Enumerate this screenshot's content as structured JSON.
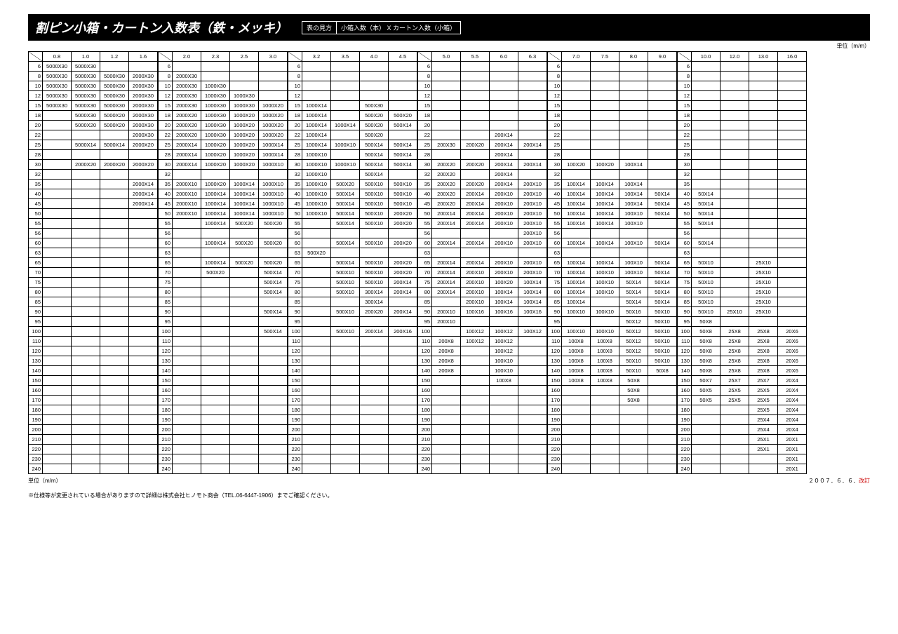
{
  "title": "割ピン小箱・カートン入数表（鉄・メッキ）",
  "legend_label": "表の見方",
  "legend_value": "小箱入数（本） X カートン入数（小箱）",
  "unit_label": "単位（m/m）",
  "footer_unit": "単位（m/m）",
  "footer_date_prefix": "２００７．６．６．",
  "footer_date_rev": "改訂",
  "disclaimer": "※仕様等が変更されている場合がありますので詳細は株式会社ヒノモト商会（TEL.06-6447-1906）までご確認ください。",
  "colgroups": [
    [
      "0.8",
      "1.0",
      "1.2",
      "1.6"
    ],
    [
      "2.0",
      "2.3",
      "2.5",
      "3.0"
    ],
    [
      "3.2",
      "3.5",
      "4.0",
      "4.5"
    ],
    [
      "5.0",
      "5.5",
      "6.0",
      "6.3"
    ],
    [
      "7.0",
      "7.5",
      "8.0",
      "9.0"
    ],
    [
      "10.0",
      "12.0",
      "13.0",
      "16.0"
    ]
  ],
  "rowheads": [
    "6",
    "8",
    "10",
    "12",
    "15",
    "18",
    "20",
    "22",
    "25",
    "28",
    "30",
    "32",
    "35",
    "40",
    "45",
    "50",
    "55",
    "56",
    "60",
    "63",
    "65",
    "70",
    "75",
    "80",
    "85",
    "90",
    "95",
    "100",
    "110",
    "120",
    "130",
    "140",
    "150",
    "160",
    "170",
    "180",
    "190",
    "200",
    "210",
    "220",
    "230",
    "240"
  ],
  "blocks": [
    [
      [
        "5000X30",
        "5000X30",
        "",
        ""
      ],
      [
        "5000X30",
        "5000X30",
        "5000X30",
        "2000X30"
      ],
      [
        "5000X30",
        "5000X30",
        "5000X30",
        "2000X30"
      ],
      [
        "5000X30",
        "5000X30",
        "5000X30",
        "2000X30"
      ],
      [
        "5000X30",
        "5000X30",
        "5000X30",
        "2000X30"
      ],
      [
        "",
        "5000X30",
        "5000X20",
        "2000X30"
      ],
      [
        "",
        "5000X20",
        "5000X20",
        "2000X30"
      ],
      [
        "",
        "",
        "",
        "2000X30"
      ],
      [
        "",
        "5000X14",
        "5000X14",
        "2000X20"
      ],
      [
        "",
        "",
        "",
        ""
      ],
      [
        "",
        "2000X20",
        "2000X20",
        "2000X20"
      ],
      [
        "",
        "",
        "",
        ""
      ],
      [
        "",
        "",
        "",
        "2000X14"
      ],
      [
        "",
        "",
        "",
        "2000X14"
      ],
      [
        "",
        "",
        "",
        "2000X14"
      ],
      [
        "",
        "",
        "",
        ""
      ],
      [
        "",
        "",
        "",
        ""
      ],
      [
        "",
        "",
        "",
        ""
      ],
      [
        "",
        "",
        "",
        ""
      ],
      [
        "",
        "",
        "",
        ""
      ],
      [
        "",
        "",
        "",
        ""
      ],
      [
        "",
        "",
        "",
        ""
      ],
      [
        "",
        "",
        "",
        ""
      ],
      [
        "",
        "",
        "",
        ""
      ],
      [
        "",
        "",
        "",
        ""
      ],
      [
        "",
        "",
        "",
        ""
      ],
      [
        "",
        "",
        "",
        ""
      ],
      [
        "",
        "",
        "",
        ""
      ],
      [
        "",
        "",
        "",
        ""
      ],
      [
        "",
        "",
        "",
        ""
      ],
      [
        "",
        "",
        "",
        ""
      ],
      [
        "",
        "",
        "",
        ""
      ],
      [
        "",
        "",
        "",
        ""
      ],
      [
        "",
        "",
        "",
        ""
      ],
      [
        "",
        "",
        "",
        ""
      ],
      [
        "",
        "",
        "",
        ""
      ],
      [
        "",
        "",
        "",
        ""
      ],
      [
        "",
        "",
        "",
        ""
      ],
      [
        "",
        "",
        "",
        ""
      ],
      [
        "",
        "",
        "",
        ""
      ],
      [
        "",
        "",
        "",
        ""
      ],
      [
        "",
        "",
        "",
        ""
      ]
    ],
    [
      [
        "",
        "",
        "",
        ""
      ],
      [
        "2000X30",
        "",
        "",
        ""
      ],
      [
        "2000X30",
        "1000X30",
        "",
        ""
      ],
      [
        "2000X30",
        "1000X30",
        "1000X30",
        ""
      ],
      [
        "2000X30",
        "1000X30",
        "1000X30",
        "1000X20"
      ],
      [
        "2000X20",
        "1000X30",
        "1000X20",
        "1000X20"
      ],
      [
        "2000X20",
        "1000X30",
        "1000X20",
        "1000X20"
      ],
      [
        "2000X20",
        "1000X30",
        "1000X20",
        "1000X20"
      ],
      [
        "2000X14",
        "1000X20",
        "1000X20",
        "1000X14"
      ],
      [
        "2000X14",
        "1000X20",
        "1000X20",
        "1000X14"
      ],
      [
        "2000X14",
        "1000X20",
        "1000X20",
        "1000X10"
      ],
      [
        "",
        "",
        "",
        ""
      ],
      [
        "2000X10",
        "1000X20",
        "1000X14",
        "1000X10"
      ],
      [
        "2000X10",
        "1000X14",
        "1000X14",
        "1000X10"
      ],
      [
        "2000X10",
        "1000X14",
        "1000X14",
        "1000X10"
      ],
      [
        "2000X10",
        "1000X14",
        "1000X14",
        "1000X10"
      ],
      [
        "",
        "1000X14",
        "500X20",
        "500X20"
      ],
      [
        "",
        "",
        "",
        ""
      ],
      [
        "",
        "1000X14",
        "500X20",
        "500X20"
      ],
      [
        "",
        "",
        "",
        ""
      ],
      [
        "",
        "1000X14",
        "500X20",
        "500X20"
      ],
      [
        "",
        "500X20",
        "",
        "500X14"
      ],
      [
        "",
        "",
        "",
        "500X14"
      ],
      [
        "",
        "",
        "",
        "500X14"
      ],
      [
        "",
        "",
        "",
        ""
      ],
      [
        "",
        "",
        "",
        "500X14"
      ],
      [
        "",
        "",
        "",
        ""
      ],
      [
        "",
        "",
        "",
        "500X14"
      ],
      [
        "",
        "",
        "",
        ""
      ],
      [
        "",
        "",
        "",
        ""
      ],
      [
        "",
        "",
        "",
        ""
      ],
      [
        "",
        "",
        "",
        ""
      ],
      [
        "",
        "",
        "",
        ""
      ],
      [
        "",
        "",
        "",
        ""
      ],
      [
        "",
        "",
        "",
        ""
      ],
      [
        "",
        "",
        "",
        ""
      ],
      [
        "",
        "",
        "",
        ""
      ],
      [
        "",
        "",
        "",
        ""
      ],
      [
        "",
        "",
        "",
        ""
      ],
      [
        "",
        "",
        "",
        ""
      ],
      [
        "",
        "",
        "",
        ""
      ],
      [
        "",
        "",
        "",
        ""
      ]
    ],
    [
      [
        "",
        "",
        "",
        ""
      ],
      [
        "",
        "",
        "",
        ""
      ],
      [
        "",
        "",
        "",
        ""
      ],
      [
        "",
        "",
        "",
        ""
      ],
      [
        "1000X14",
        "",
        "500X30",
        ""
      ],
      [
        "1000X14",
        "",
        "500X20",
        "500X20"
      ],
      [
        "1000X14",
        "1000X14",
        "500X20",
        "500X14"
      ],
      [
        "1000X14",
        "",
        "500X20",
        ""
      ],
      [
        "1000X14",
        "1000X10",
        "500X14",
        "500X14"
      ],
      [
        "1000X10",
        "",
        "500X14",
        "500X14"
      ],
      [
        "1000X10",
        "1000X10",
        "500X14",
        "500X14"
      ],
      [
        "1000X10",
        "",
        "500X14",
        ""
      ],
      [
        "1000X10",
        "500X20",
        "500X10",
        "500X10"
      ],
      [
        "1000X10",
        "500X14",
        "500X10",
        "500X10"
      ],
      [
        "1000X10",
        "500X14",
        "500X10",
        "500X10"
      ],
      [
        "1000X10",
        "500X14",
        "500X10",
        "200X20"
      ],
      [
        "",
        "500X14",
        "500X10",
        "200X20"
      ],
      [
        "",
        "",
        "",
        ""
      ],
      [
        "",
        "500X14",
        "500X10",
        "200X20"
      ],
      [
        "500X20",
        "",
        "",
        ""
      ],
      [
        "",
        "500X14",
        "500X10",
        "200X20"
      ],
      [
        "",
        "500X10",
        "500X10",
        "200X20"
      ],
      [
        "",
        "500X10",
        "500X10",
        "200X14"
      ],
      [
        "",
        "500X10",
        "300X14",
        "200X14"
      ],
      [
        "",
        "",
        "300X14",
        ""
      ],
      [
        "",
        "500X10",
        "200X20",
        "200X14"
      ],
      [
        "",
        "",
        "",
        ""
      ],
      [
        "",
        "500X10",
        "200X14",
        "200X16"
      ],
      [
        "",
        "",
        "",
        ""
      ],
      [
        "",
        "",
        "",
        ""
      ],
      [
        "",
        "",
        "",
        ""
      ],
      [
        "",
        "",
        "",
        ""
      ],
      [
        "",
        "",
        "",
        ""
      ],
      [
        "",
        "",
        "",
        ""
      ],
      [
        "",
        "",
        "",
        ""
      ],
      [
        "",
        "",
        "",
        ""
      ],
      [
        "",
        "",
        "",
        ""
      ],
      [
        "",
        "",
        "",
        ""
      ],
      [
        "",
        "",
        "",
        ""
      ],
      [
        "",
        "",
        "",
        ""
      ],
      [
        "",
        "",
        "",
        ""
      ],
      [
        "",
        "",
        "",
        ""
      ]
    ],
    [
      [
        "",
        "",
        "",
        ""
      ],
      [
        "",
        "",
        "",
        ""
      ],
      [
        "",
        "",
        "",
        ""
      ],
      [
        "",
        "",
        "",
        ""
      ],
      [
        "",
        "",
        "",
        ""
      ],
      [
        "",
        "",
        "",
        ""
      ],
      [
        "",
        "",
        "",
        ""
      ],
      [
        "",
        "",
        "200X14",
        ""
      ],
      [
        "200X30",
        "200X20",
        "200X14",
        "200X14"
      ],
      [
        "",
        "",
        "200X14",
        ""
      ],
      [
        "200X20",
        "200X20",
        "200X14",
        "200X14"
      ],
      [
        "200X20",
        "",
        "200X14",
        ""
      ],
      [
        "200X20",
        "200X20",
        "200X14",
        "200X10"
      ],
      [
        "200X20",
        "200X14",
        "200X10",
        "200X10"
      ],
      [
        "200X20",
        "200X14",
        "200X10",
        "200X10"
      ],
      [
        "200X14",
        "200X14",
        "200X10",
        "200X10"
      ],
      [
        "200X14",
        "200X14",
        "200X10",
        "200X10"
      ],
      [
        "",
        "",
        "",
        "200X10"
      ],
      [
        "200X14",
        "200X14",
        "200X10",
        "200X10"
      ],
      [
        "",
        "",
        "",
        ""
      ],
      [
        "200X14",
        "200X14",
        "200X10",
        "200X10"
      ],
      [
        "200X14",
        "200X10",
        "200X10",
        "200X10"
      ],
      [
        "200X14",
        "200X10",
        "100X20",
        "100X14"
      ],
      [
        "200X14",
        "200X10",
        "100X14",
        "100X14"
      ],
      [
        "",
        "200X10",
        "100X14",
        "100X14"
      ],
      [
        "200X10",
        "100X16",
        "100X16",
        "100X16"
      ],
      [
        "200X10",
        "",
        "",
        ""
      ],
      [
        "",
        "100X12",
        "100X12",
        "100X12"
      ],
      [
        "200X8",
        "100X12",
        "100X12",
        ""
      ],
      [
        "200X8",
        "",
        "100X12",
        ""
      ],
      [
        "200X8",
        "",
        "100X10",
        ""
      ],
      [
        "200X8",
        "",
        "100X10",
        ""
      ],
      [
        "",
        "",
        "100X8",
        ""
      ],
      [
        "",
        "",
        "",
        ""
      ],
      [
        "",
        "",
        "",
        ""
      ],
      [
        "",
        "",
        "",
        ""
      ],
      [
        "",
        "",
        "",
        ""
      ],
      [
        "",
        "",
        "",
        ""
      ],
      [
        "",
        "",
        "",
        ""
      ],
      [
        "",
        "",
        "",
        ""
      ],
      [
        "",
        "",
        "",
        ""
      ],
      [
        "",
        "",
        "",
        ""
      ]
    ],
    [
      [
        "",
        "",
        "",
        ""
      ],
      [
        "",
        "",
        "",
        ""
      ],
      [
        "",
        "",
        "",
        ""
      ],
      [
        "",
        "",
        "",
        ""
      ],
      [
        "",
        "",
        "",
        ""
      ],
      [
        "",
        "",
        "",
        ""
      ],
      [
        "",
        "",
        "",
        ""
      ],
      [
        "",
        "",
        "",
        ""
      ],
      [
        "",
        "",
        "",
        ""
      ],
      [
        "",
        "",
        "",
        ""
      ],
      [
        "100X20",
        "100X20",
        "100X14",
        ""
      ],
      [
        "",
        "",
        "",
        ""
      ],
      [
        "100X14",
        "100X14",
        "100X14",
        ""
      ],
      [
        "100X14",
        "100X14",
        "100X14",
        "50X14"
      ],
      [
        "100X14",
        "100X14",
        "100X14",
        "50X14"
      ],
      [
        "100X14",
        "100X14",
        "100X10",
        "50X14"
      ],
      [
        "100X14",
        "100X14",
        "100X10",
        ""
      ],
      [
        "",
        "",
        "",
        ""
      ],
      [
        "100X14",
        "100X14",
        "100X10",
        "50X14"
      ],
      [
        "",
        "",
        "",
        ""
      ],
      [
        "100X14",
        "100X14",
        "100X10",
        "50X14"
      ],
      [
        "100X14",
        "100X10",
        "100X10",
        "50X14"
      ],
      [
        "100X14",
        "100X10",
        "50X14",
        "50X14"
      ],
      [
        "100X14",
        "100X10",
        "50X14",
        "50X14"
      ],
      [
        "100X14",
        "",
        "50X14",
        "50X14"
      ],
      [
        "100X10",
        "100X10",
        "50X16",
        "50X10"
      ],
      [
        "",
        "",
        "50X12",
        "50X10"
      ],
      [
        "100X10",
        "100X10",
        "50X12",
        "50X10"
      ],
      [
        "100X8",
        "100X8",
        "50X12",
        "50X10"
      ],
      [
        "100X8",
        "100X8",
        "50X12",
        "50X10"
      ],
      [
        "100X8",
        "100X8",
        "50X10",
        "50X10"
      ],
      [
        "100X8",
        "100X8",
        "50X10",
        "50X8"
      ],
      [
        "100X8",
        "100X8",
        "50X8",
        ""
      ],
      [
        "",
        "",
        "50X8",
        ""
      ],
      [
        "",
        "",
        "50X8",
        ""
      ],
      [
        "",
        "",
        "",
        ""
      ],
      [
        "",
        "",
        "",
        ""
      ],
      [
        "",
        "",
        "",
        ""
      ],
      [
        "",
        "",
        "",
        ""
      ],
      [
        "",
        "",
        "",
        ""
      ],
      [
        "",
        "",
        "",
        ""
      ],
      [
        "",
        "",
        "",
        ""
      ]
    ],
    [
      [
        "",
        "",
        "",
        ""
      ],
      [
        "",
        "",
        "",
        ""
      ],
      [
        "",
        "",
        "",
        ""
      ],
      [
        "",
        "",
        "",
        ""
      ],
      [
        "",
        "",
        "",
        ""
      ],
      [
        "",
        "",
        "",
        ""
      ],
      [
        "",
        "",
        "",
        ""
      ],
      [
        "",
        "",
        "",
        ""
      ],
      [
        "",
        "",
        "",
        ""
      ],
      [
        "",
        "",
        "",
        ""
      ],
      [
        "",
        "",
        "",
        ""
      ],
      [
        "",
        "",
        "",
        ""
      ],
      [
        "",
        "",
        "",
        ""
      ],
      [
        "50X14",
        "",
        "",
        ""
      ],
      [
        "50X14",
        "",
        "",
        ""
      ],
      [
        "50X14",
        "",
        "",
        ""
      ],
      [
        "50X14",
        "",
        "",
        ""
      ],
      [
        "",
        "",
        "",
        ""
      ],
      [
        "50X14",
        "",
        "",
        ""
      ],
      [
        "",
        "",
        "",
        ""
      ],
      [
        "50X10",
        "",
        "25X10",
        ""
      ],
      [
        "50X10",
        "",
        "25X10",
        ""
      ],
      [
        "50X10",
        "",
        "25X10",
        ""
      ],
      [
        "50X10",
        "",
        "25X10",
        ""
      ],
      [
        "50X10",
        "",
        "25X10",
        ""
      ],
      [
        "50X10",
        "25X10",
        "25X10",
        ""
      ],
      [
        "50X8",
        "",
        "",
        ""
      ],
      [
        "50X8",
        "25X8",
        "25X8",
        "20X6"
      ],
      [
        "50X8",
        "25X8",
        "25X8",
        "20X6"
      ],
      [
        "50X8",
        "25X8",
        "25X8",
        "20X6"
      ],
      [
        "50X8",
        "25X8",
        "25X8",
        "20X6"
      ],
      [
        "50X8",
        "25X8",
        "25X8",
        "20X6"
      ],
      [
        "50X7",
        "25X7",
        "25X7",
        "20X4"
      ],
      [
        "50X5",
        "25X5",
        "25X5",
        "20X4"
      ],
      [
        "50X5",
        "25X5",
        "25X5",
        "20X4"
      ],
      [
        "",
        "",
        "25X5",
        "20X4"
      ],
      [
        "",
        "",
        "25X4",
        "20X4"
      ],
      [
        "",
        "",
        "25X4",
        "20X4"
      ],
      [
        "",
        "",
        "25X1",
        "20X1"
      ],
      [
        "",
        "",
        "25X1",
        "20X1"
      ],
      [
        "",
        "",
        "",
        "20X1"
      ],
      [
        "",
        "",
        "",
        "20X1"
      ]
    ]
  ]
}
